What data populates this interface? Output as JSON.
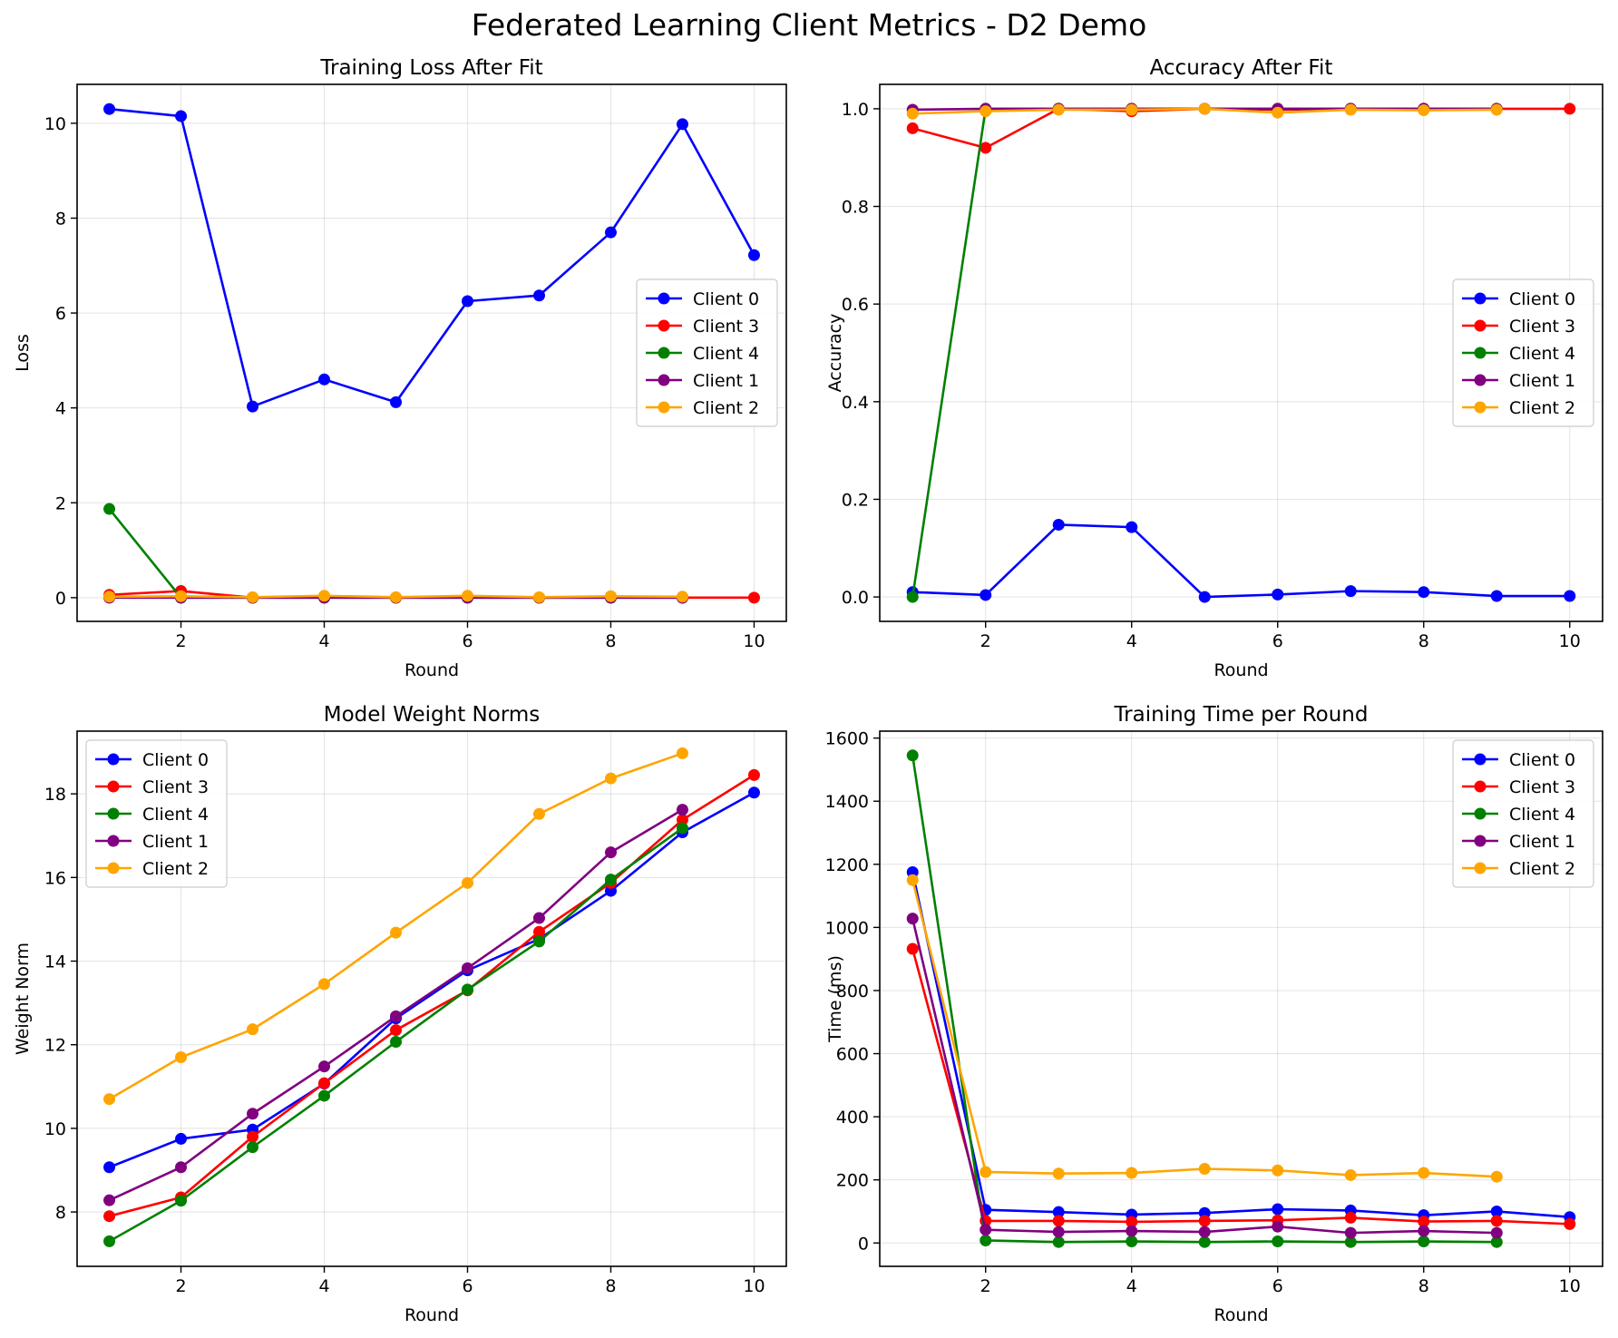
{
  "figure": {
    "suptitle": "Federated Learning Client Metrics - D2 Demo"
  },
  "colors": {
    "Client 0": "#0000ff",
    "Client 3": "#ff0000",
    "Client 4": "#008000",
    "Client 1": "#800080",
    "Client 2": "#ffa500"
  },
  "chart_data": [
    {
      "type": "line",
      "title": "Training Loss After Fit",
      "xlabel": "Round",
      "ylabel": "Loss",
      "xlim": [
        0.55,
        10.45
      ],
      "ylim": [
        -0.5,
        10.82
      ],
      "xticks": [
        2,
        4,
        6,
        8,
        10
      ],
      "yticks": [
        0,
        2,
        4,
        6,
        8,
        10
      ],
      "grid": true,
      "legend": "center-right",
      "series": [
        {
          "name": "Client 0",
          "x": [
            1,
            2,
            3,
            4,
            5,
            6,
            7,
            8,
            9,
            10
          ],
          "values": [
            10.3,
            10.15,
            4.03,
            4.6,
            4.12,
            6.25,
            6.37,
            7.7,
            9.98,
            7.22
          ]
        },
        {
          "name": "Client 3",
          "x": [
            1,
            2,
            3,
            4,
            5,
            6,
            7,
            8,
            9,
            10
          ],
          "values": [
            0.06,
            0.14,
            0.0,
            0.02,
            0.0,
            0.01,
            0.0,
            0.01,
            0.0,
            0.0
          ]
        },
        {
          "name": "Client 4",
          "x": [
            1,
            2,
            3,
            4,
            5,
            6,
            7,
            8,
            9
          ],
          "values": [
            1.87,
            0.0,
            0.0,
            0.0,
            0.0,
            0.0,
            0.0,
            0.0,
            0.0
          ]
        },
        {
          "name": "Client 1",
          "x": [
            1,
            2,
            3,
            4,
            5,
            6,
            7,
            8,
            9
          ],
          "values": [
            0.0,
            0.0,
            0.0,
            0.0,
            0.0,
            0.0,
            0.0,
            0.0,
            0.0
          ]
        },
        {
          "name": "Client 2",
          "x": [
            1,
            2,
            3,
            4,
            5,
            6,
            7,
            8,
            9
          ],
          "values": [
            0.02,
            0.03,
            0.01,
            0.04,
            0.01,
            0.04,
            0.01,
            0.03,
            0.02
          ]
        }
      ]
    },
    {
      "type": "line",
      "title": "Accuracy After Fit",
      "xlabel": "Round",
      "ylabel": "Accuracy",
      "xlim": [
        0.55,
        10.45
      ],
      "ylim": [
        -0.05,
        1.05
      ],
      "xticks": [
        2,
        4,
        6,
        8,
        10
      ],
      "yticks": [
        0.0,
        0.2,
        0.4,
        0.6,
        0.8,
        1.0
      ],
      "grid": true,
      "legend": "center-right",
      "series": [
        {
          "name": "Client 0",
          "x": [
            1,
            2,
            3,
            4,
            5,
            6,
            7,
            8,
            9,
            10
          ],
          "values": [
            0.01,
            0.004,
            0.148,
            0.143,
            0.0,
            0.005,
            0.012,
            0.01,
            0.002,
            0.002
          ]
        },
        {
          "name": "Client 3",
          "x": [
            1,
            2,
            3,
            4,
            5,
            6,
            7,
            8,
            9,
            10
          ],
          "values": [
            0.96,
            0.92,
            1.0,
            0.995,
            1.0,
            0.998,
            1.0,
            1.0,
            1.0,
            1.0
          ]
        },
        {
          "name": "Client 4",
          "x": [
            1,
            2,
            3,
            4,
            5,
            6,
            7,
            8,
            9
          ],
          "values": [
            0.0,
            1.0,
            1.0,
            1.0,
            1.0,
            1.0,
            1.0,
            1.0,
            1.0
          ]
        },
        {
          "name": "Client 1",
          "x": [
            1,
            2,
            3,
            4,
            5,
            6,
            7,
            8,
            9
          ],
          "values": [
            0.998,
            1.0,
            1.0,
            1.0,
            1.0,
            1.0,
            1.0,
            1.0,
            1.0
          ]
        },
        {
          "name": "Client 2",
          "x": [
            1,
            2,
            3,
            4,
            5,
            6,
            7,
            8,
            9
          ],
          "values": [
            0.99,
            0.995,
            0.998,
            0.998,
            1.0,
            0.992,
            0.998,
            0.997,
            0.998
          ]
        }
      ]
    },
    {
      "type": "line",
      "title": "Model Weight Norms",
      "xlabel": "Round",
      "ylabel": "Weight Norm",
      "xlim": [
        0.55,
        10.45
      ],
      "ylim": [
        6.7,
        19.5
      ],
      "xticks": [
        2,
        4,
        6,
        8,
        10
      ],
      "yticks": [
        8,
        10,
        12,
        14,
        16,
        18
      ],
      "grid": true,
      "legend": "upper-left",
      "series": [
        {
          "name": "Client 0",
          "x": [
            1,
            2,
            3,
            4,
            5,
            6,
            7,
            8,
            9,
            10
          ],
          "values": [
            9.07,
            9.75,
            9.97,
            11.07,
            12.63,
            13.78,
            14.53,
            15.68,
            17.08,
            18.03
          ]
        },
        {
          "name": "Client 3",
          "x": [
            1,
            2,
            3,
            4,
            5,
            6,
            7,
            8,
            9,
            10
          ],
          "values": [
            7.9,
            8.35,
            9.8,
            11.08,
            12.35,
            13.3,
            14.7,
            15.87,
            17.38,
            18.45
          ]
        },
        {
          "name": "Client 4",
          "x": [
            1,
            2,
            3,
            4,
            5,
            6,
            7,
            8,
            9
          ],
          "values": [
            7.3,
            8.27,
            9.55,
            10.78,
            12.07,
            13.32,
            14.47,
            15.95,
            17.18
          ]
        },
        {
          "name": "Client 1",
          "x": [
            1,
            2,
            3,
            4,
            5,
            6,
            7,
            8,
            9
          ],
          "values": [
            8.28,
            9.07,
            10.35,
            11.48,
            12.68,
            13.83,
            15.03,
            16.6,
            17.62
          ]
        },
        {
          "name": "Client 2",
          "x": [
            1,
            2,
            3,
            4,
            5,
            6,
            7,
            8,
            9
          ],
          "values": [
            10.7,
            11.7,
            12.37,
            13.45,
            14.68,
            15.87,
            17.52,
            18.37,
            18.97
          ]
        }
      ]
    },
    {
      "type": "line",
      "title": "Training Time per Round",
      "xlabel": "Round",
      "ylabel": "Time (ms)",
      "xlim": [
        0.55,
        10.45
      ],
      "ylim": [
        -74,
        1622
      ],
      "xticks": [
        2,
        4,
        6,
        8,
        10
      ],
      "yticks": [
        0,
        200,
        400,
        600,
        800,
        1000,
        1200,
        1400,
        1600
      ],
      "grid": true,
      "legend": "upper-right",
      "series": [
        {
          "name": "Client 0",
          "x": [
            1,
            2,
            3,
            4,
            5,
            6,
            7,
            8,
            9,
            10
          ],
          "values": [
            1175,
            105,
            98,
            90,
            95,
            107,
            103,
            88,
            100,
            82
          ]
        },
        {
          "name": "Client 3",
          "x": [
            1,
            2,
            3,
            4,
            5,
            6,
            7,
            8,
            9,
            10
          ],
          "values": [
            932,
            70,
            70,
            67,
            70,
            72,
            80,
            68,
            70,
            60
          ]
        },
        {
          "name": "Client 4",
          "x": [
            1,
            2,
            3,
            4,
            5,
            6,
            7,
            8,
            9
          ],
          "values": [
            1545,
            8,
            3,
            5,
            3,
            5,
            3,
            5,
            3
          ]
        },
        {
          "name": "Client 1",
          "x": [
            1,
            2,
            3,
            4,
            5,
            6,
            7,
            8,
            9
          ],
          "values": [
            1028,
            42,
            35,
            38,
            35,
            52,
            32,
            38,
            32
          ]
        },
        {
          "name": "Client 2",
          "x": [
            1,
            2,
            3,
            4,
            5,
            6,
            7,
            8,
            9
          ],
          "values": [
            1150,
            225,
            220,
            222,
            235,
            230,
            215,
            222,
            210
          ]
        }
      ]
    }
  ]
}
